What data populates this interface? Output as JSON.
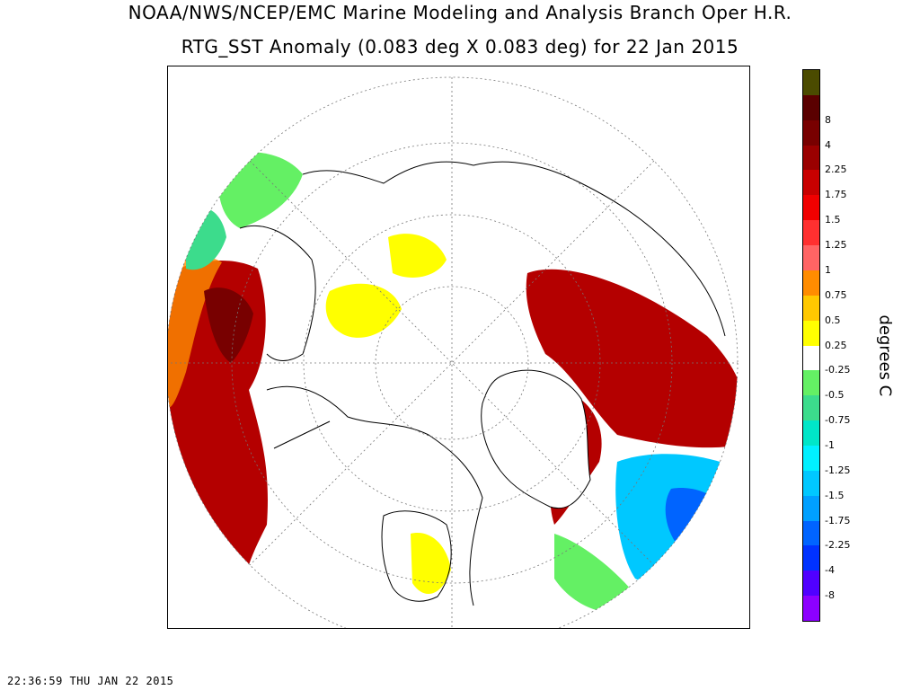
{
  "header": {
    "title_line1": "NOAA/NWS/NCEP/EMC Marine Modeling and Analysis Branch Oper H.R.",
    "title_line2": "RTG_SST Anomaly (0.083 deg X 0.083 deg) for 22 Jan 2015"
  },
  "map": {
    "projection": "polar-stereographic-north",
    "land_color": "#ffffff",
    "coastline_color": "#000000"
  },
  "legend": {
    "units": "degrees C",
    "bins": [
      {
        "label": "",
        "color": "#4b4b00"
      },
      {
        "label": "8",
        "color": "#5a0000"
      },
      {
        "label": "4",
        "color": "#780000"
      },
      {
        "label": "2.25",
        "color": "#9a0000"
      },
      {
        "label": "1.75",
        "color": "#c80000"
      },
      {
        "label": "1.5",
        "color": "#f00000"
      },
      {
        "label": "1.25",
        "color": "#ff3030"
      },
      {
        "label": "1",
        "color": "#ff6464"
      },
      {
        "label": "0.75",
        "color": "#ff8c00"
      },
      {
        "label": "0.5",
        "color": "#ffc800"
      },
      {
        "label": "0.25",
        "color": "#ffff00"
      },
      {
        "label": "-0.25",
        "color": "#ffffff"
      },
      {
        "label": "-0.5",
        "color": "#64f064"
      },
      {
        "label": "-0.75",
        "color": "#3cdc8c"
      },
      {
        "label": "-1",
        "color": "#00e6c8"
      },
      {
        "label": "-1.25",
        "color": "#00f0ff"
      },
      {
        "label": "-1.5",
        "color": "#00c8ff"
      },
      {
        "label": "-1.75",
        "color": "#00a0ff"
      },
      {
        "label": "-2.25",
        "color": "#0064ff"
      },
      {
        "label": "-4",
        "color": "#0032ff"
      },
      {
        "label": "-8",
        "color": "#5000ff"
      },
      {
        "label": "",
        "color": "#8c00ff"
      }
    ]
  },
  "footer": {
    "timestamp": "22:36:59  THU JAN 22 2015"
  }
}
